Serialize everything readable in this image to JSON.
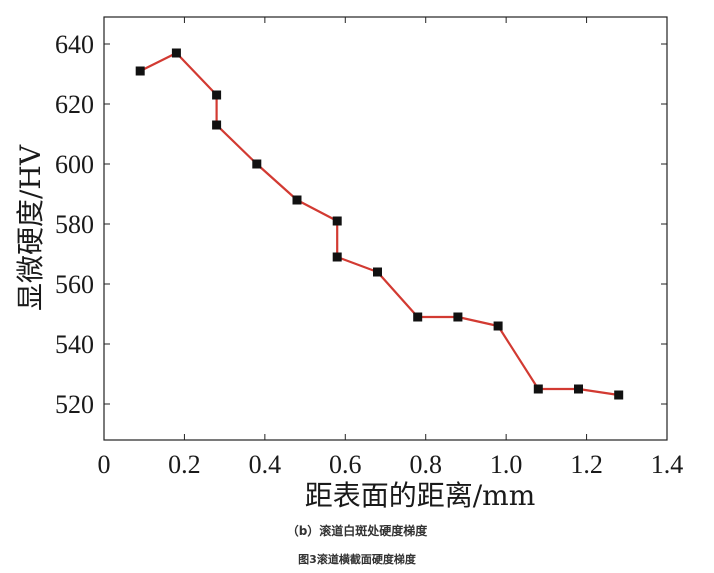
{
  "chart_data": {
    "type": "line",
    "xlabel": "距表面的距离/mm",
    "ylabel": "显微硬度/HV",
    "xlim": [
      0,
      1.4
    ],
    "ylim": [
      508,
      649
    ],
    "xticks": [
      0,
      0.2,
      0.4,
      0.6,
      0.8,
      1.0,
      1.2,
      1.4
    ],
    "xtick_labels": [
      "0",
      "0.2",
      "0.4",
      "0.6",
      "0.8",
      "1.0",
      "1.2",
      "1.4"
    ],
    "yticks": [
      520,
      540,
      560,
      580,
      600,
      620,
      640
    ],
    "ytick_labels": [
      "520",
      "540",
      "560",
      "580",
      "600",
      "620",
      "640"
    ],
    "grid": false,
    "series": [
      {
        "x": [
          0.09,
          0.18,
          0.28,
          0.28,
          0.38,
          0.48,
          0.58,
          0.58,
          0.68,
          0.78,
          0.88,
          0.98,
          1.08,
          1.18,
          1.28
        ],
        "y": [
          631,
          637,
          623,
          613,
          600,
          588,
          581,
          569,
          564,
          549,
          549,
          546,
          525,
          525,
          523
        ],
        "line_color": "#d23a32",
        "marker_color": "#111111"
      }
    ]
  },
  "caption": {
    "subfigure": "（b）滚道白斑处硬度梯度",
    "figure": "图3滚道横截面硬度梯度"
  }
}
